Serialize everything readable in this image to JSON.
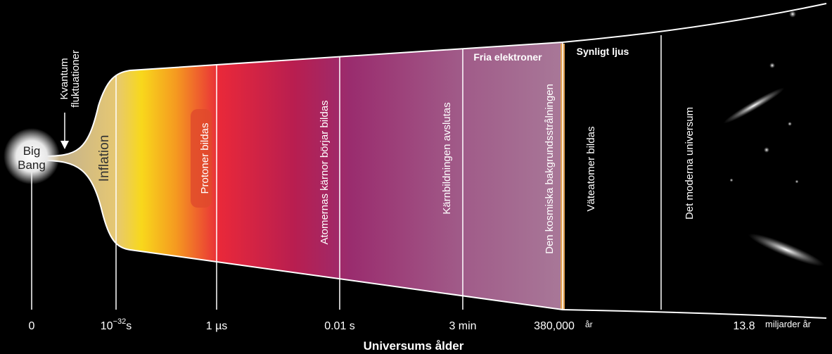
{
  "diagram": {
    "big_bang": [
      "Big",
      "Bang"
    ],
    "quantum_label": [
      "Kvantum",
      "fluktuationer"
    ],
    "inflation": "Inflation",
    "epochs": [
      "Protoner bildas",
      "Atomernas kärnor börjar bildas",
      "Kärnbildningen avslutas",
      "Den kosmiska bakgrundsstrålningen",
      "Väteatomer bildas",
      "Det moderna universum"
    ],
    "free_electrons": "Fria elektroner",
    "visible_light": "Synligt ljus"
  },
  "axis": {
    "title": "Universums ålder",
    "ticks": {
      "zero": "0",
      "planck": {
        "base": "10",
        "exponent": "−32",
        "unit": "s"
      },
      "microsecond": "1 µs",
      "centisecond": "0.01 s",
      "minutes": "3 min",
      "years": {
        "number": "380,000",
        "unit": "år"
      },
      "now": {
        "number": "13.8",
        "unit": "miljarder år"
      }
    }
  }
}
